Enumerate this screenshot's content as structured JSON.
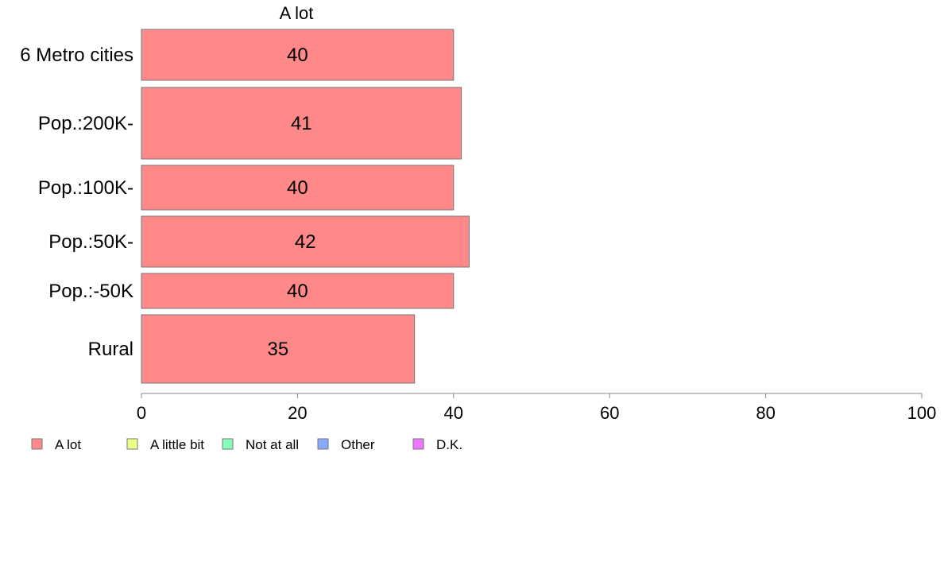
{
  "chart_data": {
    "type": "bar",
    "orientation": "horizontal",
    "title": "A lot",
    "categories": [
      "6 Metro cities",
      "Pop.:200K-",
      "Pop.:100K-",
      "Pop.:50K-",
      "Pop.:-50K",
      "Rural"
    ],
    "series": [
      {
        "name": "A lot",
        "color": "#ff8888",
        "values": [
          40,
          41,
          40,
          42,
          40,
          35
        ]
      }
    ],
    "data_labels": [
      "40",
      "41",
      "40",
      "42",
      "40",
      "35"
    ],
    "xlim": [
      0,
      100
    ],
    "x_ticks": [
      0,
      20,
      40,
      60,
      80,
      100
    ],
    "grid": false,
    "legend": {
      "placement": "bottom-left",
      "entries": [
        {
          "label": "A lot",
          "color": "#ff8888"
        },
        {
          "label": "A little bit",
          "color": "#eeff88"
        },
        {
          "label": "Not at all",
          "color": "#88ffbb"
        },
        {
          "label": "Other",
          "color": "#88aaff"
        },
        {
          "label": "D.K.",
          "color": "#ee77ff"
        }
      ]
    },
    "colors": {
      "bar_stroke": "#777777",
      "axis": "#888888",
      "text": "#000000"
    }
  }
}
